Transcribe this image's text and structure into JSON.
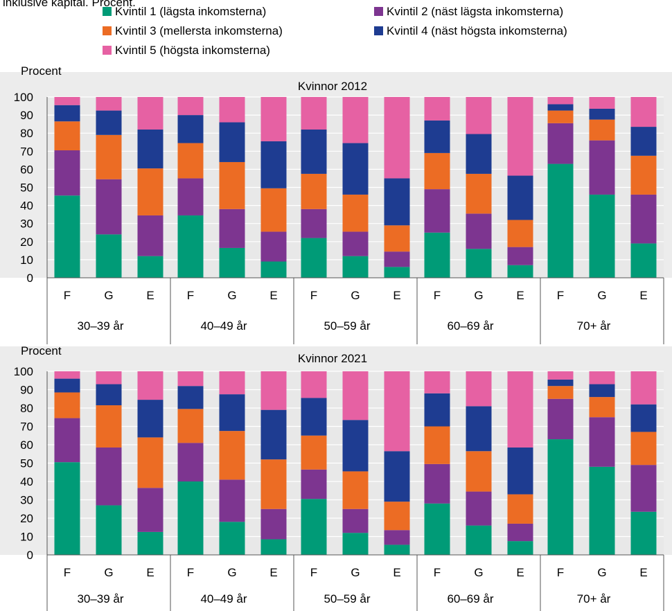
{
  "header_fragment": "inklusive kapital. Procent.",
  "chart_data": [
    {
      "type": "bar",
      "stacked": true,
      "title": "Kvinnor 2012",
      "ylabel": "Procent",
      "ylim": [
        0,
        100
      ],
      "yticks": [
        0,
        10,
        20,
        30,
        40,
        50,
        60,
        70,
        80,
        90,
        100
      ],
      "groups": [
        "30–39 år",
        "40–49 år",
        "50–59 år",
        "60–69 år",
        "70+ år"
      ],
      "categories": [
        "F",
        "G",
        "E"
      ],
      "series": [
        {
          "name": "Kvintil 1 (lägsta inkomsterna)",
          "color": "#009b77",
          "values": [
            [
              45.5,
              24,
              12
            ],
            [
              34.5,
              16.5,
              9
            ],
            [
              22,
              12,
              6
            ],
            [
              25,
              16,
              7
            ],
            [
              63,
              46,
              19
            ]
          ]
        },
        {
          "name": "Kvintil 2 (näst lägsta inkomsterna)",
          "color": "#7d3590",
          "values": [
            [
              25,
              30.5,
              22.5
            ],
            [
              20.5,
              21.5,
              16.5
            ],
            [
              16,
              13.5,
              8.5
            ],
            [
              24,
              19.5,
              10
            ],
            [
              22.5,
              30,
              27
            ]
          ]
        },
        {
          "name": "Kvintil 3 (mellersta inkomsterna)",
          "color": "#ec6c24",
          "values": [
            [
              16,
              24.5,
              26
            ],
            [
              19.5,
              26,
              24
            ],
            [
              19.5,
              20.5,
              14.5
            ],
            [
              20,
              22,
              15
            ],
            [
              7,
              11.5,
              21.5
            ]
          ]
        },
        {
          "name": "Kvintil 4 (näst högsta inkomsterna)",
          "color": "#1e3c91",
          "values": [
            [
              9,
              13.5,
              21.5
            ],
            [
              15.5,
              22,
              26
            ],
            [
              24.5,
              28.5,
              26
            ],
            [
              18,
              22,
              24.5
            ],
            [
              3.5,
              6,
              16
            ]
          ]
        },
        {
          "name": "Kvintil 5 (högsta inkomsterna)",
          "color": "#e661a3",
          "values": [
            [
              4.5,
              7.5,
              18
            ],
            [
              10,
              14,
              24.5
            ],
            [
              18,
              25.5,
              45
            ],
            [
              13,
              20.5,
              43.5
            ],
            [
              4,
              6.5,
              16.5
            ]
          ]
        }
      ]
    },
    {
      "type": "bar",
      "stacked": true,
      "title": "Kvinnor 2021",
      "ylabel": "Procent",
      "ylim": [
        0,
        100
      ],
      "yticks": [
        0,
        10,
        20,
        30,
        40,
        50,
        60,
        70,
        80,
        90,
        100
      ],
      "groups": [
        "30–39 år",
        "40–49 år",
        "50–59 år",
        "60–69 år",
        "70+ år"
      ],
      "categories": [
        "F",
        "G",
        "E"
      ],
      "series": [
        {
          "name": "Kvintil 1 (lägsta inkomsterna)",
          "color": "#009b77",
          "values": [
            [
              50.5,
              27,
              12.5
            ],
            [
              40,
              18,
              8.5
            ],
            [
              30.5,
              12,
              5.5
            ],
            [
              28,
              16,
              7.5
            ],
            [
              63,
              48,
              23.5
            ]
          ]
        },
        {
          "name": "Kvintil 2 (näst lägsta inkomsterna)",
          "color": "#7d3590",
          "values": [
            [
              24,
              31.5,
              24
            ],
            [
              21,
              23,
              16.5
            ],
            [
              16,
              13,
              8
            ],
            [
              21.5,
              18.5,
              9.5
            ],
            [
              22,
              27,
              25.5
            ]
          ]
        },
        {
          "name": "Kvintil 3 (mellersta inkomsterna)",
          "color": "#ec6c24",
          "values": [
            [
              14,
              23,
              27.5
            ],
            [
              18.5,
              26.5,
              27
            ],
            [
              18.5,
              20.5,
              15.5
            ],
            [
              20.5,
              22,
              16
            ],
            [
              7,
              11,
              18
            ]
          ]
        },
        {
          "name": "Kvintil 4 (näst högsta inkomsterna)",
          "color": "#1e3c91",
          "values": [
            [
              7.5,
              11.5,
              20.5
            ],
            [
              12.5,
              20,
              27
            ],
            [
              20.5,
              28,
              27.5
            ],
            [
              18,
              24.5,
              25.5
            ],
            [
              3.5,
              7,
              15
            ]
          ]
        },
        {
          "name": "Kvintil 5 (högsta inkomsterna)",
          "color": "#e661a3",
          "values": [
            [
              4,
              7,
              15.5
            ],
            [
              8,
              12.5,
              21
            ],
            [
              14.5,
              26.5,
              43.5
            ],
            [
              12,
              19,
              41.5
            ],
            [
              4.5,
              7,
              18
            ]
          ]
        }
      ]
    }
  ]
}
